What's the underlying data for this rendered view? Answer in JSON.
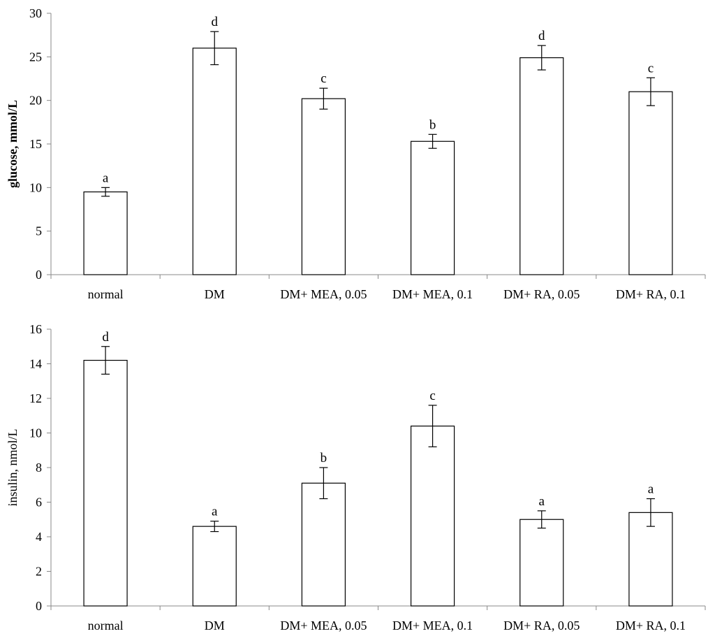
{
  "chart_data": [
    {
      "type": "bar",
      "title": "",
      "xlabel": "",
      "ylabel": "glucose, mmol/L",
      "ylim": [
        0,
        30
      ],
      "yticks": [
        0,
        5,
        10,
        15,
        20,
        25,
        30
      ],
      "categories": [
        "normal",
        "DM",
        "DM+ MEA, 0.05",
        "DM+ MEA, 0.1",
        "DM+ RA, 0.05",
        "DM+ RA, 0.1"
      ],
      "values": [
        9.5,
        26.0,
        20.2,
        15.3,
        24.9,
        21.0
      ],
      "errors": [
        0.5,
        1.9,
        1.2,
        0.8,
        1.4,
        1.6
      ],
      "significance": [
        "a",
        "d",
        "c",
        "b",
        "d",
        "c"
      ]
    },
    {
      "type": "bar",
      "title": "",
      "xlabel": "",
      "ylabel": "insulin, nmol/L",
      "ylim": [
        0,
        16
      ],
      "yticks": [
        0,
        2,
        4,
        6,
        8,
        10,
        12,
        14,
        16
      ],
      "categories": [
        "normal",
        "DM",
        "DM+ MEA, 0.05",
        "DM+ MEA, 0.1",
        "DM+ RA, 0.05",
        "DM+ RA, 0.1"
      ],
      "values": [
        14.2,
        4.6,
        7.1,
        10.4,
        5.0,
        5.4
      ],
      "errors": [
        0.8,
        0.3,
        0.9,
        1.2,
        0.5,
        0.8
      ],
      "significance": [
        "d",
        "a",
        "b",
        "c",
        "a",
        "a"
      ]
    }
  ]
}
